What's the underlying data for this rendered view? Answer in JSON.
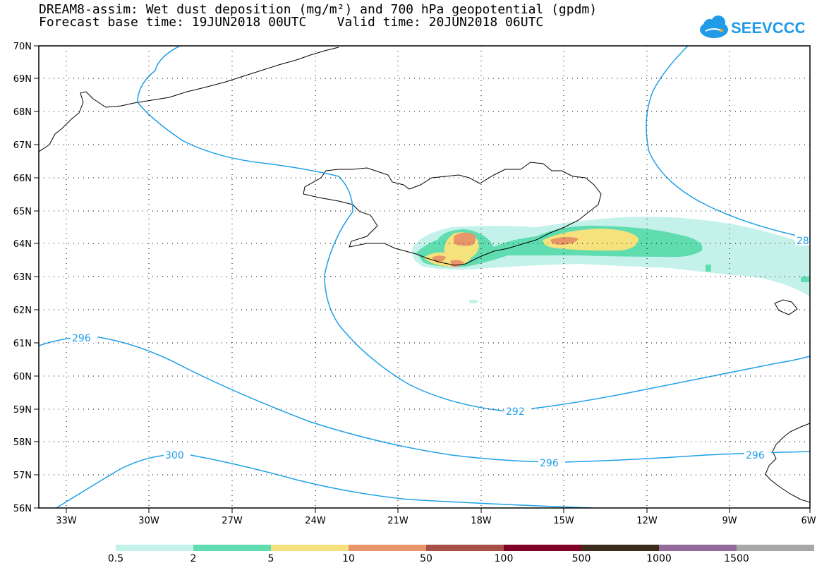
{
  "title_line1": "DREAM8-assim: Wet dust deposition (mg/m²) and 700 hPa geopotential (gpdm)",
  "title_line2": "Forecast base time: 19JUN2018 00UTC    Valid time: 20JUN2018 06UTC",
  "logo_text": "SEEVCCC",
  "logo_icon": "cloud-icon",
  "lat_labels": [
    "70N",
    "69N",
    "68N",
    "67N",
    "66N",
    "65N",
    "64N",
    "63N",
    "62N",
    "61N",
    "60N",
    "59N",
    "58N",
    "57N",
    "56N"
  ],
  "lon_labels": [
    "33W",
    "30W",
    "27W",
    "24W",
    "21W",
    "18W",
    "15W",
    "12W",
    "9W",
    "6W"
  ],
  "contour_labels": [
    "296",
    "292",
    "296",
    "296",
    "300",
    "28"
  ],
  "legend": {
    "labels": [
      "0.5",
      "2",
      "5",
      "10",
      "50",
      "100",
      "500",
      "1000",
      "1500"
    ],
    "colors": [
      "#c4f2ea",
      "#5fdcb0",
      "#f6e27c",
      "#e8956a",
      "#a85048",
      "#800028",
      "#3c2c1c",
      "#946c9c",
      "#a8a8a8"
    ]
  },
  "colors": {
    "contour": "#1fa0e8",
    "coast": "#000000",
    "logo": "#1f9be8"
  }
}
